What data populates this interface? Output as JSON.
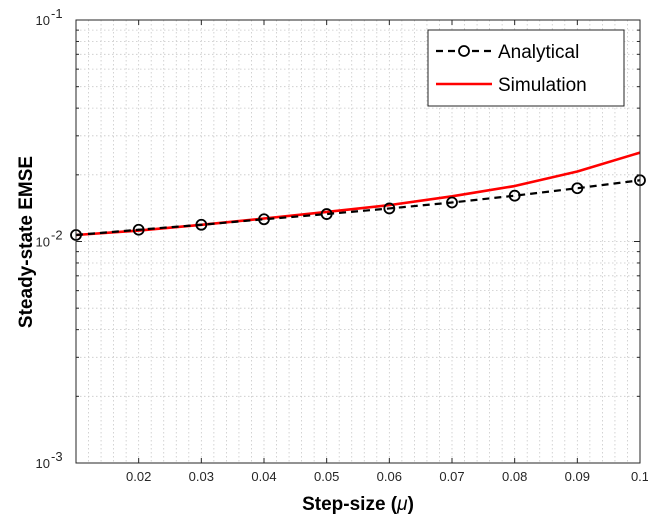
{
  "chart_data": {
    "type": "line",
    "title": "",
    "xlabel": "Step-size (μ)",
    "xlabel_main": "Step-size (",
    "xlabel_symbol": "μ",
    "xlabel_close": ")",
    "ylabel": "Steady-state EMSE",
    "xlim": [
      0.01,
      0.1
    ],
    "ylim": [
      0.001,
      0.1
    ],
    "yscale": "log",
    "grid": true,
    "minor_grid": true,
    "legend_position": "top-right",
    "x_ticks": [
      "0.02",
      "0.03",
      "0.04",
      "0.05",
      "0.06",
      "0.07",
      "0.08",
      "0.09",
      "0.1"
    ],
    "y_ticks": [
      {
        "base": "10",
        "exp": "-3"
      },
      {
        "base": "10",
        "exp": "-2"
      },
      {
        "base": "10",
        "exp": "-1"
      }
    ],
    "x": [
      0.01,
      0.02,
      0.03,
      0.04,
      0.05,
      0.06,
      0.07,
      0.08,
      0.09,
      0.1
    ],
    "series": [
      {
        "name": "Analytical",
        "color": "#000000",
        "style": "dashed",
        "marker": "circle",
        "values": [
          0.0107,
          0.0113,
          0.0119,
          0.0126,
          0.0133,
          0.0141,
          0.015,
          0.0161,
          0.0174,
          0.0189
        ]
      },
      {
        "name": "Simulation",
        "color": "#ff0000",
        "style": "solid",
        "marker": "none",
        "values": [
          0.0107,
          0.0112,
          0.0119,
          0.0127,
          0.0136,
          0.0146,
          0.016,
          0.0178,
          0.0207,
          0.0252
        ]
      }
    ]
  }
}
